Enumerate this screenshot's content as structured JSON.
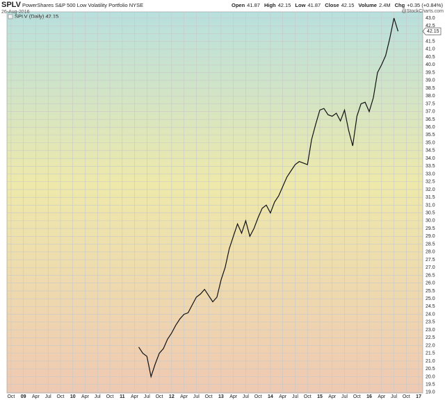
{
  "chart_data": {
    "type": "line",
    "symbol": "SPLV",
    "title": "PowerShares S&P 500 Low Volatility Portfolio NYSE",
    "date": "26-Aug-2016",
    "quote": [
      {
        "label": "Open",
        "value": "41.87"
      },
      {
        "label": "High",
        "value": "42.15"
      },
      {
        "label": "Low",
        "value": "41.87"
      },
      {
        "label": "Close",
        "value": "42.15"
      },
      {
        "label": "Volume",
        "value": "2.4M"
      },
      {
        "label": "Chg",
        "value": "+0.35 (+0.84%)"
      }
    ],
    "credit": "@StockCharts.com",
    "last_value": 42.15,
    "x": [
      "2011-05",
      "2011-06",
      "2011-07",
      "2011-08",
      "2011-09",
      "2011-10",
      "2011-11",
      "2011-12",
      "2012-01",
      "2012-02",
      "2012-03",
      "2012-04",
      "2012-05",
      "2012-06",
      "2012-07",
      "2012-08",
      "2012-09",
      "2012-10",
      "2012-11",
      "2012-12",
      "2013-01",
      "2013-02",
      "2013-03",
      "2013-04",
      "2013-05",
      "2013-06",
      "2013-07",
      "2013-08",
      "2013-09",
      "2013-10",
      "2013-11",
      "2013-12",
      "2014-01",
      "2014-02",
      "2014-03",
      "2014-04",
      "2014-05",
      "2014-06",
      "2014-07",
      "2014-08",
      "2014-09",
      "2014-10",
      "2014-11",
      "2014-12",
      "2015-01",
      "2015-02",
      "2015-03",
      "2015-04",
      "2015-05",
      "2015-06",
      "2015-07",
      "2015-08",
      "2015-09",
      "2015-10",
      "2015-11",
      "2015-12",
      "2016-01",
      "2016-02",
      "2016-03",
      "2016-04",
      "2016-05",
      "2016-06",
      "2016-07",
      "2016-08"
    ],
    "series": [
      {
        "name": "SPLV (Daily) 42.15",
        "color": "#111111",
        "values": [
          21.9,
          21.5,
          21.3,
          20.0,
          20.8,
          21.5,
          21.8,
          22.4,
          22.8,
          23.3,
          23.7,
          24.0,
          24.1,
          24.6,
          25.1,
          25.3,
          25.6,
          25.2,
          24.8,
          25.1,
          26.2,
          27.0,
          28.2,
          29.0,
          29.8,
          29.2,
          30.0,
          29.0,
          29.5,
          30.2,
          30.8,
          31.0,
          30.5,
          31.2,
          31.6,
          32.2,
          32.8,
          33.2,
          33.6,
          33.8,
          33.7,
          33.6,
          35.2,
          36.2,
          37.1,
          37.2,
          36.8,
          36.7,
          36.9,
          36.4,
          37.1,
          35.8,
          34.8,
          36.7,
          37.5,
          37.6,
          37.0,
          37.9,
          39.5,
          40.0,
          40.6,
          41.7,
          43.0,
          42.15
        ]
      }
    ],
    "xlim": [
      "2008-09",
      "2017-02"
    ],
    "xticks": [
      {
        "value": "2008-10",
        "label": "Oct"
      },
      {
        "value": "2009-01",
        "label": "09"
      },
      {
        "value": "2009-04",
        "label": "Apr"
      },
      {
        "value": "2009-07",
        "label": "Jul"
      },
      {
        "value": "2009-10",
        "label": "Oct"
      },
      {
        "value": "2010-01",
        "label": "10"
      },
      {
        "value": "2010-04",
        "label": "Apr"
      },
      {
        "value": "2010-07",
        "label": "Jul"
      },
      {
        "value": "2010-10",
        "label": "Oct"
      },
      {
        "value": "2011-01",
        "label": "11"
      },
      {
        "value": "2011-04",
        "label": "Apr"
      },
      {
        "value": "2011-07",
        "label": "Jul"
      },
      {
        "value": "2011-10",
        "label": "Oct"
      },
      {
        "value": "2012-01",
        "label": "12"
      },
      {
        "value": "2012-04",
        "label": "Apr"
      },
      {
        "value": "2012-07",
        "label": "Jul"
      },
      {
        "value": "2012-10",
        "label": "Oct"
      },
      {
        "value": "2013-01",
        "label": "13"
      },
      {
        "value": "2013-04",
        "label": "Apr"
      },
      {
        "value": "2013-07",
        "label": "Jul"
      },
      {
        "value": "2013-10",
        "label": "Oct"
      },
      {
        "value": "2014-01",
        "label": "14"
      },
      {
        "value": "2014-04",
        "label": "Apr"
      },
      {
        "value": "2014-07",
        "label": "Jul"
      },
      {
        "value": "2014-10",
        "label": "Oct"
      },
      {
        "value": "2015-01",
        "label": "15"
      },
      {
        "value": "2015-04",
        "label": "Apr"
      },
      {
        "value": "2015-07",
        "label": "Jul"
      },
      {
        "value": "2015-10",
        "label": "Oct"
      },
      {
        "value": "2016-01",
        "label": "16"
      },
      {
        "value": "2016-04",
        "label": "Apr"
      },
      {
        "value": "2016-07",
        "label": "Jul"
      },
      {
        "value": "2016-10",
        "label": "Oct"
      },
      {
        "value": "2017-01",
        "label": "17"
      }
    ],
    "ylim": [
      18.95,
      43.4
    ],
    "yticks": [
      {
        "value": 19,
        "label": "19.0"
      },
      19.5,
      {
        "value": 20,
        "label": "20.0"
      },
      20.5,
      {
        "value": 21,
        "label": "21.0"
      },
      21.5,
      {
        "value": 22,
        "label": "22.0"
      },
      22.5,
      {
        "value": 23,
        "label": "23.0"
      },
      23.5,
      {
        "value": 24,
        "label": "24.0"
      },
      24.5,
      {
        "value": 25,
        "label": "25.0"
      },
      25.5,
      {
        "value": 26,
        "label": "26.0"
      },
      26.5,
      {
        "value": 27,
        "label": "27.0"
      },
      27.5,
      {
        "value": 28,
        "label": "28.0"
      },
      28.5,
      {
        "value": 29,
        "label": "29.0"
      },
      29.5,
      {
        "value": 30,
        "label": "30.0"
      },
      30.5,
      {
        "value": 31,
        "label": "31.0"
      },
      31.5,
      {
        "value": 32,
        "label": "32.0"
      },
      32.5,
      {
        "value": 33,
        "label": "33.0"
      },
      33.5,
      {
        "value": 34,
        "label": "34.0"
      },
      34.5,
      {
        "value": 35,
        "label": "35.0"
      },
      35.5,
      {
        "value": 36,
        "label": "36.0"
      },
      36.5,
      {
        "value": 37,
        "label": "37.0"
      },
      37.5,
      {
        "value": 38,
        "label": "38.0"
      },
      38.5,
      {
        "value": 39,
        "label": "39.0"
      },
      39.5,
      {
        "value": 40,
        "label": "40.0"
      },
      40.5,
      {
        "value": 41,
        "label": "41.0"
      },
      41.5,
      {
        "value": 42,
        "label": "42.0"
      },
      42.5,
      {
        "value": 43,
        "label": "43.0"
      }
    ],
    "grid": true
  }
}
